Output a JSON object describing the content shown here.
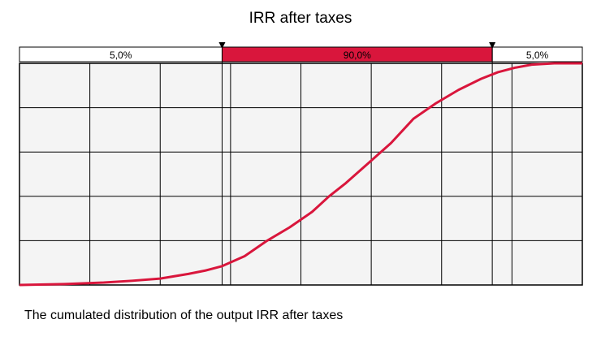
{
  "chart_data": {
    "type": "line",
    "title": "IRR after taxes",
    "xlabel": "",
    "ylabel": "",
    "xlim": [
      0,
      1
    ],
    "ylim": [
      0,
      1
    ],
    "grid": true,
    "x": [
      0.0,
      0.08,
      0.15,
      0.2,
      0.25,
      0.3,
      0.33,
      0.36,
      0.4,
      0.44,
      0.48,
      0.52,
      0.55,
      0.58,
      0.62,
      0.66,
      0.7,
      0.74,
      0.78,
      0.82,
      0.85,
      0.88,
      0.91,
      0.95,
      1.0
    ],
    "series": [
      {
        "values": [
          0.0,
          0.004,
          0.011,
          0.019,
          0.029,
          0.05,
          0.065,
          0.085,
          0.13,
          0.2,
          0.26,
          0.33,
          0.4,
          0.46,
          0.55,
          0.64,
          0.75,
          0.82,
          0.88,
          0.93,
          0.96,
          0.98,
          0.994,
          1.0,
          1.0
        ],
        "color": "#d9163c"
      }
    ],
    "confidence_band": {
      "segments": [
        {
          "label": "5,0%",
          "fraction": 0.05
        },
        {
          "label": "90,0%",
          "fraction": 0.9
        },
        {
          "label": "5,0%",
          "fraction": 0.05
        }
      ],
      "lower_x": 0.36,
      "upper_x": 0.84,
      "band_color": "#d9163c"
    },
    "plot_background": "#f4f4f4"
  },
  "caption": "The cumulated distribution of the output IRR after taxes"
}
